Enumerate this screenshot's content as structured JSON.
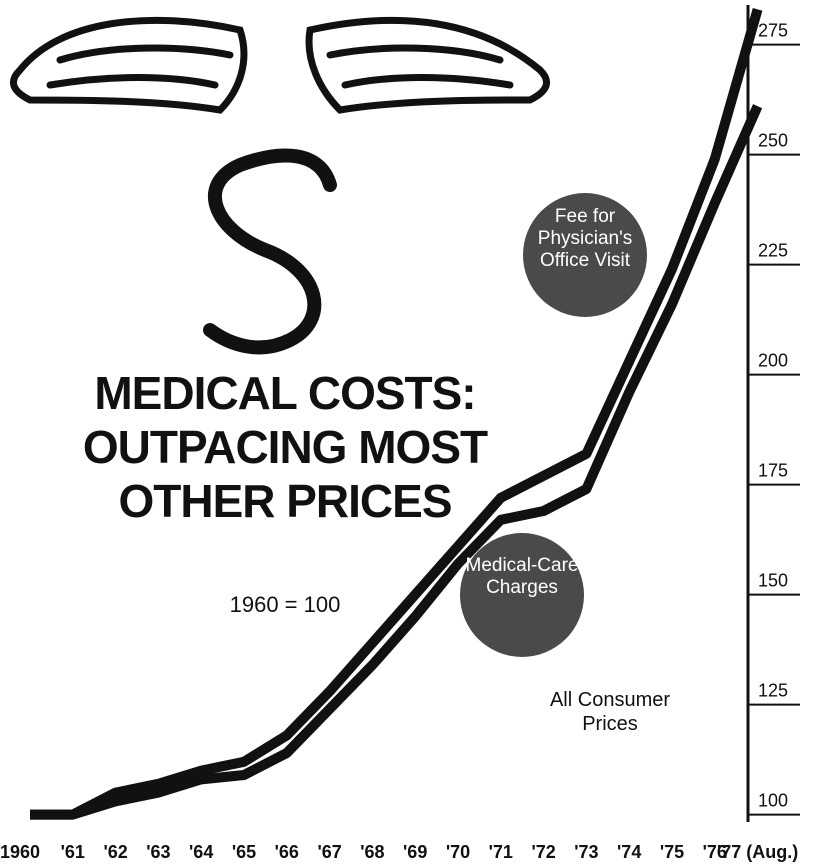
{
  "chart_data": {
    "type": "line",
    "title": "MEDICAL COSTS: OUTPACING MOST OTHER PRICES",
    "subtitle": "1960 = 100",
    "categories": [
      "1960",
      "'61",
      "'62",
      "'63",
      "'64",
      "'65",
      "'66",
      "'67",
      "'68",
      "'69",
      "'70",
      "'71",
      "'72",
      "'73",
      "'74",
      "'75",
      "'76",
      "'77 (Aug.)"
    ],
    "series": [
      {
        "name": "Fee for Physician's Office Visit",
        "color": "#111111",
        "values": [
          100,
          100,
          105,
          107,
          110,
          112,
          118,
          128,
          139,
          150,
          161,
          172,
          177,
          182,
          203,
          224,
          249,
          283
        ]
      },
      {
        "name": "Medical-Care Charges",
        "color": "#111111",
        "values": [
          100,
          100,
          103,
          105,
          108,
          109,
          114,
          124,
          134,
          145,
          157,
          167,
          169,
          174,
          196,
          216,
          239,
          261
        ]
      }
    ],
    "annotations": [
      "All Consumer Prices"
    ],
    "ylim": [
      99,
      284
    ],
    "yticks": [
      100,
      125,
      150,
      175,
      200,
      225,
      250,
      275
    ]
  }
}
